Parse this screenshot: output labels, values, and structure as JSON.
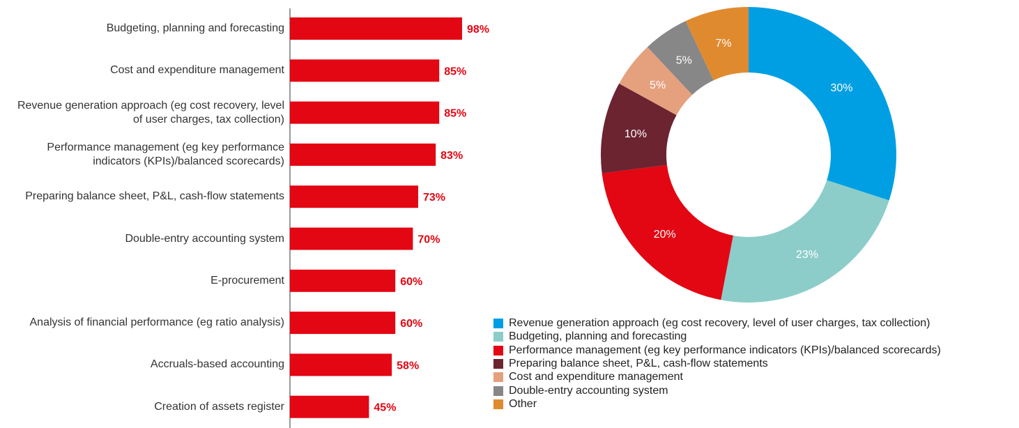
{
  "chart_data": [
    {
      "type": "hbar",
      "categories": [
        "Budgeting, planning and forecasting",
        "Cost and expenditure management",
        "Revenue generation approach (eg cost recovery, level of user charges, tax collection)",
        "Performance management (eg key performance indicators (KPIs)/balanced scorecards)",
        "Preparing balance sheet, P&L, cash-flow statements",
        "Double-entry accounting system",
        "E-procurement",
        "Analysis of financial performance (eg ratio analysis)",
        "Accruals-based accounting",
        "Creation of assets register"
      ],
      "values": [
        98,
        85,
        85,
        83,
        73,
        70,
        60,
        60,
        58,
        45
      ],
      "value_labels": [
        "98%",
        "85%",
        "85%",
        "83%",
        "73%",
        "70%",
        "60%",
        "60%",
        "58%",
        "45%"
      ],
      "color": "#e30613",
      "xlim": [
        0,
        100
      ]
    },
    {
      "type": "donut",
      "categories": [
        "Revenue generation approach (eg cost recovery, level of user charges, tax collection)",
        "Budgeting, planning and forecasting",
        "Performance management (eg key performance indicators (KPIs)/balanced scorecards)",
        "Preparing balance sheet, P&L, cash-flow statements",
        "Cost and expenditure management",
        "Double-entry accounting system",
        "Other"
      ],
      "values": [
        30,
        23,
        20,
        10,
        5,
        5,
        7
      ],
      "value_labels": [
        "30%",
        "23%",
        "20%",
        "10%",
        "5%",
        "5%",
        "7%"
      ],
      "colors": [
        "#009fe3",
        "#8ccdc9",
        "#e30613",
        "#6b2430",
        "#e5a07e",
        "#878787",
        "#e08a2f"
      ],
      "legend": "bottom"
    }
  ]
}
